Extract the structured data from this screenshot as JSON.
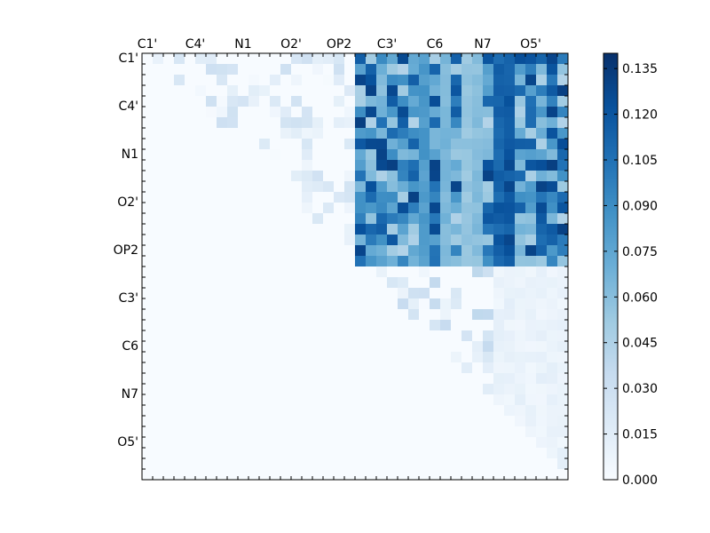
{
  "chart_data": {
    "type": "heatmap",
    "title": "",
    "xlabel": "",
    "ylabel": "",
    "size": 40,
    "labels": [
      "C1'",
      "C4'",
      "N1",
      "O2'",
      "OP2",
      "C3'",
      "C6",
      "N7",
      "O5'"
    ],
    "label_every": 4.5,
    "colorbar": {
      "min": 0.0,
      "max": 0.14,
      "ticks": [
        "0.000",
        "0.015",
        "0.030",
        "0.045",
        "0.060",
        "0.075",
        "0.090",
        "0.105",
        "0.120",
        "0.135"
      ],
      "tick_values": [
        0.0,
        0.015,
        0.03,
        0.045,
        0.06,
        0.075,
        0.09,
        0.105,
        0.12,
        0.135
      ]
    },
    "colormap": [
      "#f7fbff",
      "#deebf7",
      "#c6dbef",
      "#9ecae1",
      "#6baed6",
      "#4292c6",
      "#2171b5",
      "#08519c",
      "#08306b"
    ],
    "blocks": [
      {
        "rows": [
          0,
          20
        ],
        "cols": [
          20,
          40
        ],
        "level": 0.095
      },
      {
        "rows": [
          20,
          40
        ],
        "cols": [
          33,
          40
        ],
        "level": 0.01
      }
    ],
    "stripes": [
      {
        "rows": [
          0,
          20
        ],
        "cols": [
          33,
          34
        ],
        "value": 0.125
      },
      {
        "rows": [
          0,
          20
        ],
        "cols": [
          34,
          35
        ],
        "value": 0.13
      },
      {
        "rows": [
          0,
          20
        ],
        "cols": [
          30,
          31
        ],
        "value": 0.06
      },
      {
        "rows": [
          0,
          20
        ],
        "cols": [
          31,
          32
        ],
        "value": 0.065
      },
      {
        "rows": [
          0,
          20
        ],
        "cols": [
          28,
          29
        ],
        "value": 0.07
      },
      {
        "rows": [
          0,
          20
        ],
        "cols": [
          26,
          27
        ],
        "value": 0.09
      }
    ],
    "upper_light": {
      "rows": [
        0,
        20
      ],
      "cols": [
        0,
        20
      ],
      "max": 0.03
    },
    "lower_sparse": {
      "rows": [
        20,
        40
      ],
      "cols": [
        20,
        40
      ],
      "max": 0.04
    }
  }
}
